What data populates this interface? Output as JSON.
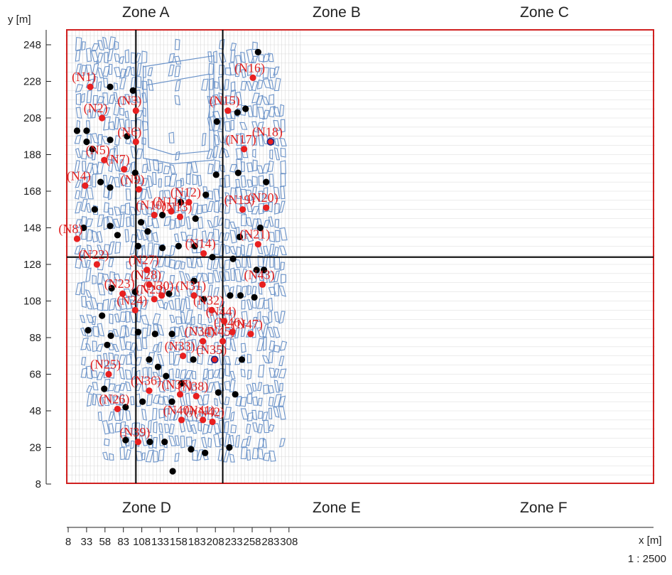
{
  "axes": {
    "x_unit_label": "x [m]",
    "y_unit_label": "y [m]",
    "x_ticks": [
      "8",
      "33",
      "58",
      "83",
      "108",
      "133",
      "158",
      "183",
      "208",
      "233",
      "258",
      "283",
      "308"
    ],
    "y_ticks": [
      "8",
      "28",
      "48",
      "68",
      "88",
      "108",
      "128",
      "148",
      "168",
      "188",
      "208",
      "228",
      "248"
    ],
    "x_range": [
      8,
      320
    ],
    "y_range": [
      8,
      252
    ]
  },
  "scale": "1 : 2500",
  "zones": {
    "top": [
      "Zone A",
      "Zone B",
      "Zone C"
    ],
    "bottom": [
      "Zone D",
      "Zone E",
      "Zone F"
    ]
  },
  "zone_boundaries": {
    "x": [
      100,
      218
    ],
    "y": 132
  },
  "colors": {
    "boundary": "#d02020",
    "building": "#6b93c9",
    "grid": "#d9d9d9",
    "node": "#e82020",
    "junction": "#000000",
    "label": "#e02020",
    "zone_line": "#000000"
  },
  "labeled_nodes": [
    {
      "label": "(N1)",
      "x": 38,
      "y": 225
    },
    {
      "label": "(N2)",
      "x": 54,
      "y": 208
    },
    {
      "label": "(N3)",
      "x": 100,
      "y": 212
    },
    {
      "label": "(N4)",
      "x": 31,
      "y": 171
    },
    {
      "label": "(N5)",
      "x": 57,
      "y": 185
    },
    {
      "label": "(N6)",
      "x": 100,
      "y": 195
    },
    {
      "label": "(N7)",
      "x": 84,
      "y": 180
    },
    {
      "label": "(N8)",
      "x": 20,
      "y": 142
    },
    {
      "label": "(N9)",
      "x": 104,
      "y": 169
    },
    {
      "label": "(N10)",
      "x": 125,
      "y": 155
    },
    {
      "label": "(N11)",
      "x": 148,
      "y": 157
    },
    {
      "label": "(N12)",
      "x": 172,
      "y": 162
    },
    {
      "label": "(N13)",
      "x": 160,
      "y": 154
    },
    {
      "label": "(N14)",
      "x": 192,
      "y": 134
    },
    {
      "label": "(N15)",
      "x": 225,
      "y": 212
    },
    {
      "label": "(N16)",
      "x": 259,
      "y": 230
    },
    {
      "label": "(N17)",
      "x": 247,
      "y": 191
    },
    {
      "label": "(N18)",
      "x": 283,
      "y": 195,
      "ringed": true
    },
    {
      "label": "(N19)",
      "x": 245,
      "y": 158
    },
    {
      "label": "(N20)",
      "x": 277,
      "y": 159
    },
    {
      "label": "(N21)",
      "x": 266,
      "y": 139
    },
    {
      "label": "(N22)",
      "x": 47,
      "y": 128
    },
    {
      "label": "(N23)",
      "x": 82,
      "y": 112
    },
    {
      "label": "(N24)",
      "x": 99,
      "y": 103
    },
    {
      "label": "(N25)",
      "x": 63,
      "y": 68
    },
    {
      "label": "(N26)",
      "x": 75,
      "y": 49
    },
    {
      "label": "(N27)",
      "x": 115,
      "y": 125
    },
    {
      "label": "(N28)",
      "x": 118,
      "y": 117
    },
    {
      "label": "(N29)",
      "x": 125,
      "y": 109
    },
    {
      "label": "(N30)",
      "x": 135,
      "y": 111
    },
    {
      "label": "(N31)",
      "x": 179,
      "y": 111
    },
    {
      "label": "(N32)",
      "x": 203,
      "y": 103
    },
    {
      "label": "(N33)",
      "x": 164,
      "y": 78
    },
    {
      "label": "(N34)",
      "x": 191,
      "y": 86
    },
    {
      "label": "(N35)",
      "x": 207,
      "y": 76,
      "ringed": true
    },
    {
      "label": "(N36)",
      "x": 118,
      "y": 59
    },
    {
      "label": "(N37)",
      "x": 160,
      "y": 57
    },
    {
      "label": "(N38)",
      "x": 182,
      "y": 56
    },
    {
      "label": "(N39)",
      "x": 103,
      "y": 31
    },
    {
      "label": "(N40)",
      "x": 162,
      "y": 43
    },
    {
      "label": "(N41)",
      "x": 191,
      "y": 43
    },
    {
      "label": "(N42)",
      "x": 204,
      "y": 42
    },
    {
      "label": "(N43)",
      "x": 272,
      "y": 117
    },
    {
      "label": "(N44)",
      "x": 220,
      "y": 97
    },
    {
      "label": "(N45)",
      "x": 218,
      "y": 86
    },
    {
      "label": "(N46)",
      "x": 231,
      "y": 91
    },
    {
      "label": "(N47)",
      "x": 256,
      "y": 90
    }
  ],
  "junctions": [
    [
      65,
      225
    ],
    [
      96,
      223
    ],
    [
      20,
      201
    ],
    [
      33,
      201
    ],
    [
      33,
      195
    ],
    [
      41,
      191
    ],
    [
      65,
      196
    ],
    [
      88,
      198
    ],
    [
      52,
      173
    ],
    [
      65,
      170
    ],
    [
      99,
      178
    ],
    [
      44,
      158
    ],
    [
      29,
      148
    ],
    [
      65,
      149
    ],
    [
      75,
      144
    ],
    [
      210,
      206
    ],
    [
      238,
      211
    ],
    [
      249,
      213
    ],
    [
      266,
      244
    ],
    [
      239,
      178
    ],
    [
      277,
      173
    ],
    [
      269,
      148
    ],
    [
      107,
      151
    ],
    [
      103,
      138
    ],
    [
      116,
      146
    ],
    [
      136,
      137
    ],
    [
      136,
      155
    ],
    [
      161,
      162
    ],
    [
      158,
      138
    ],
    [
      180,
      138
    ],
    [
      181,
      153
    ],
    [
      195,
      166
    ],
    [
      209,
      177
    ],
    [
      204,
      132
    ],
    [
      232,
      131
    ],
    [
      241,
      143
    ],
    [
      264,
      125
    ],
    [
      274,
      125
    ],
    [
      228,
      111
    ],
    [
      242,
      111
    ],
    [
      261,
      110
    ],
    [
      145,
      112
    ],
    [
      179,
      119
    ],
    [
      192,
      109
    ],
    [
      67,
      115
    ],
    [
      99,
      113
    ],
    [
      54,
      100
    ],
    [
      35,
      92
    ],
    [
      61,
      84
    ],
    [
      66,
      89
    ],
    [
      103,
      91
    ],
    [
      126,
      90
    ],
    [
      149,
      90
    ],
    [
      118,
      76
    ],
    [
      130,
      72
    ],
    [
      141,
      67
    ],
    [
      149,
      53
    ],
    [
      162,
      63
    ],
    [
      178,
      76
    ],
    [
      109,
      53
    ],
    [
      57,
      60
    ],
    [
      86,
      50
    ],
    [
      86,
      32
    ],
    [
      119,
      31
    ],
    [
      139,
      31
    ],
    [
      150,
      15
    ],
    [
      175,
      27
    ],
    [
      194,
      25
    ],
    [
      212,
      58
    ],
    [
      227,
      28
    ],
    [
      244,
      76
    ],
    [
      235,
      57
    ]
  ]
}
